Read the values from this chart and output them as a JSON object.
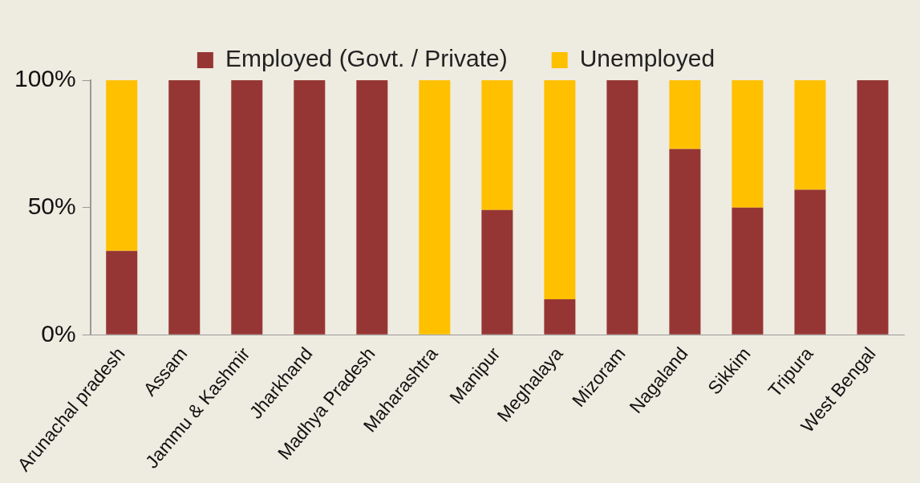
{
  "chart_data": {
    "type": "bar",
    "stacked": true,
    "categories": [
      "Arunachal pradesh",
      "Assam",
      "Jammu & Kashmir",
      "Jharkhand",
      "Madhya Pradesh",
      "Maharashtra",
      "Manipur",
      "Meghalaya",
      "Mizoram",
      "Nagaland",
      "Sikkim",
      "Tripura",
      "West Bengal"
    ],
    "series": [
      {
        "name": "Employed (Govt. / Private)",
        "color": "#963634",
        "values": [
          33,
          100,
          100,
          100,
          100,
          0,
          49,
          14,
          100,
          73,
          50,
          57,
          100
        ]
      },
      {
        "name": "Unemployed",
        "color": "#ffc000",
        "values": [
          67,
          0,
          0,
          0,
          0,
          100,
          51,
          86,
          0,
          27,
          50,
          43,
          0
        ]
      }
    ],
    "ylim": [
      0,
      100
    ],
    "yticks": [
      {
        "value": 0,
        "label": "0%"
      },
      {
        "value": 50,
        "label": "50%"
      },
      {
        "value": 100,
        "label": "100%"
      }
    ],
    "grid": false,
    "legend": "top"
  }
}
